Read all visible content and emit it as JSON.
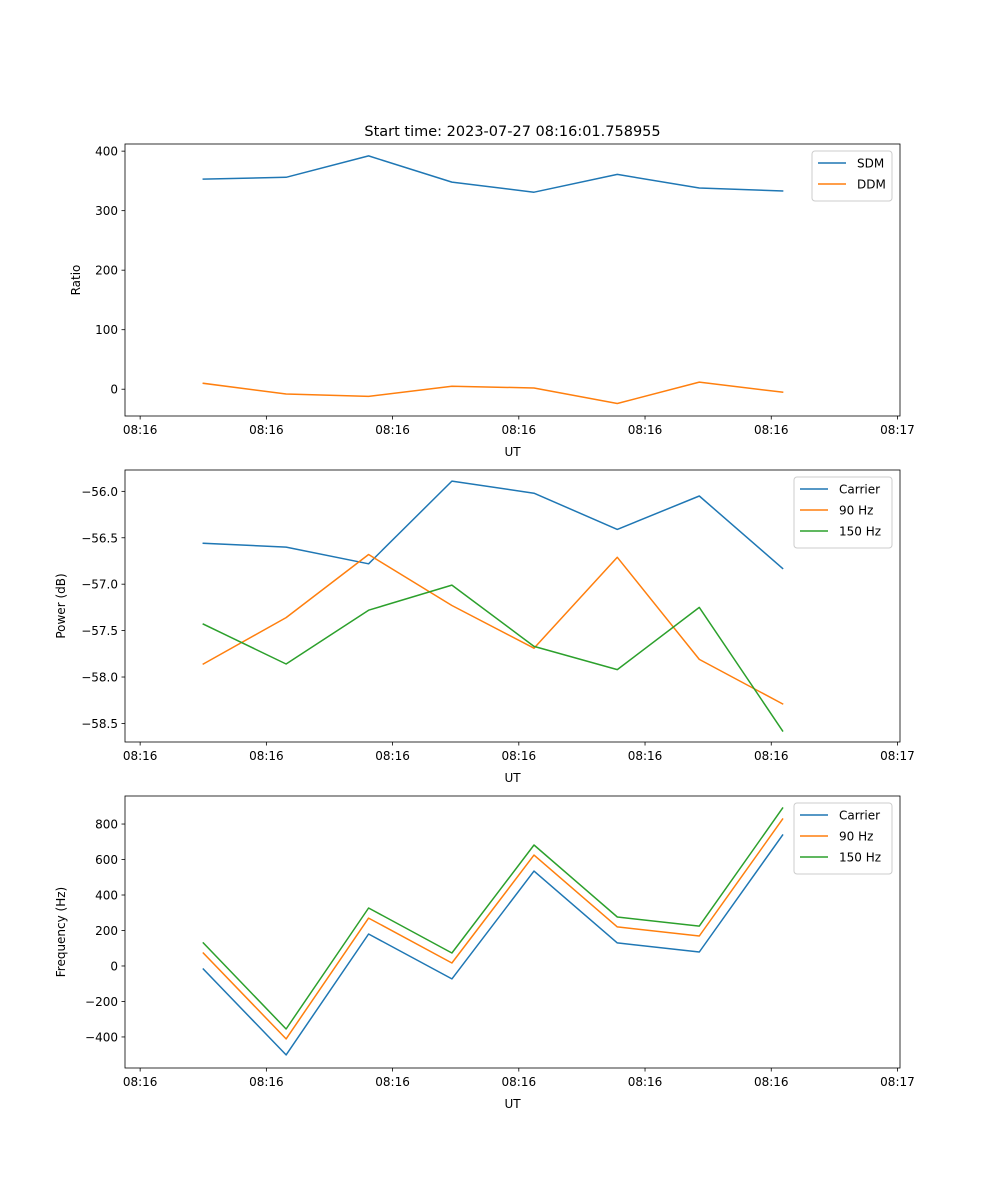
{
  "chart_data": [
    {
      "type": "line",
      "title": "Start time: 2023-07-27 08:16:01.758955",
      "xlabel": "UT",
      "ylabel": "Ratio",
      "x_unit": "seconds after 08:16:00",
      "xlim": [
        -1.2,
        60.2
      ],
      "ylim": [
        -45,
        412
      ],
      "xticks": [
        0,
        10,
        20,
        30,
        40,
        50,
        60
      ],
      "xtick_labels": [
        "08:16",
        "08:16",
        "08:16",
        "08:16",
        "08:16",
        "08:16",
        "08:17"
      ],
      "yticks": [
        0,
        100,
        200,
        300,
        400
      ],
      "ytick_labels": [
        "0",
        "100",
        "200",
        "300",
        "400"
      ],
      "x": [
        5.0,
        11.56,
        18.1,
        24.7,
        31.2,
        37.8,
        44.3,
        50.9
      ],
      "legend": "top-right",
      "series": [
        {
          "name": "SDM",
          "color": "#1f77b4",
          "values": [
            353,
            356,
            392,
            348,
            331,
            361,
            338,
            333
          ]
        },
        {
          "name": "DDM",
          "color": "#ff7f0e",
          "values": [
            10,
            -8,
            -12,
            5,
            2,
            -24,
            12,
            -5
          ]
        }
      ]
    },
    {
      "type": "line",
      "title": "",
      "xlabel": "UT",
      "ylabel": "Power (dB)",
      "xlim": [
        -1.2,
        60.2
      ],
      "ylim": [
        -58.7,
        -55.77
      ],
      "xticks": [
        0,
        10,
        20,
        30,
        40,
        50,
        60
      ],
      "xtick_labels": [
        "08:16",
        "08:16",
        "08:16",
        "08:16",
        "08:16",
        "08:16",
        "08:17"
      ],
      "yticks": [
        -58.5,
        -58.0,
        -57.5,
        -57.0,
        -56.5,
        -56.0
      ],
      "ytick_labels": [
        "−58.5",
        "−58.0",
        "−57.5",
        "−57.0",
        "−56.5",
        "−56.0"
      ],
      "x": [
        5.0,
        11.56,
        18.1,
        24.7,
        31.2,
        37.8,
        44.3,
        50.9
      ],
      "legend": "top-right",
      "series": [
        {
          "name": "Carrier",
          "color": "#1f77b4",
          "values": [
            -56.56,
            -56.6,
            -56.78,
            -55.89,
            -56.02,
            -56.41,
            -56.05,
            -56.83
          ]
        },
        {
          "name": "90 Hz",
          "color": "#ff7f0e",
          "values": [
            -57.86,
            -57.36,
            -56.68,
            -57.23,
            -57.69,
            -56.71,
            -57.81,
            -58.29
          ]
        },
        {
          "name": "150 Hz",
          "color": "#2ca02c",
          "values": [
            -57.43,
            -57.86,
            -57.28,
            -57.01,
            -57.67,
            -57.92,
            -57.25,
            -58.58
          ]
        }
      ]
    },
    {
      "type": "line",
      "title": "",
      "xlabel": "UT",
      "ylabel": "Frequency (Hz)",
      "xlim": [
        -1.2,
        60.2
      ],
      "ylim": [
        -575,
        958
      ],
      "xticks": [
        0,
        10,
        20,
        30,
        40,
        50,
        60
      ],
      "xtick_labels": [
        "08:16",
        "08:16",
        "08:16",
        "08:16",
        "08:16",
        "08:16",
        "08:17"
      ],
      "yticks": [
        -400,
        -200,
        0,
        200,
        400,
        600,
        800
      ],
      "ytick_labels": [
        "−400",
        "−200",
        "0",
        "200",
        "400",
        "600",
        "800"
      ],
      "x": [
        5.0,
        11.56,
        18.1,
        24.7,
        31.2,
        37.8,
        44.3,
        50.9
      ],
      "legend": "top-right",
      "series": [
        {
          "name": "Carrier",
          "color": "#1f77b4",
          "values": [
            -17,
            -501,
            180,
            -73,
            535,
            130,
            79,
            738
          ]
        },
        {
          "name": "90 Hz",
          "color": "#ff7f0e",
          "values": [
            73,
            -411,
            270,
            17,
            625,
            220,
            169,
            828
          ]
        },
        {
          "name": "150 Hz",
          "color": "#2ca02c",
          "values": [
            130,
            -355,
            327,
            73,
            682,
            276,
            225,
            890
          ]
        }
      ]
    }
  ]
}
